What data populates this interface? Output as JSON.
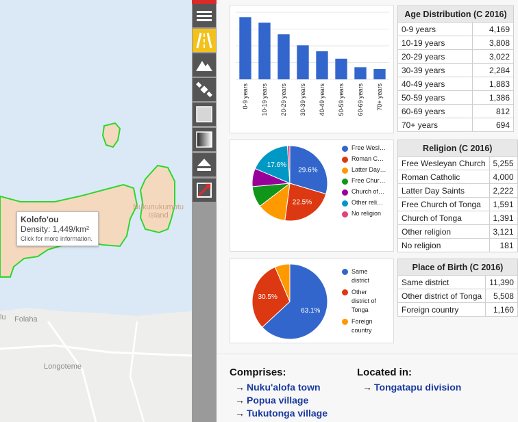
{
  "map": {
    "labels": {
      "island": "Nukunukumotu Island",
      "folaha": "Folaha",
      "longoteme": "Longoteme",
      "lu": "lu"
    },
    "tooltip": {
      "title": "Kolofo'ou",
      "density": "Density: 1,449/km²",
      "hint": "Click for more information."
    }
  },
  "toolbar": {
    "buttons": [
      {
        "icon": "menu-icon",
        "active": false
      },
      {
        "icon": "road-icon",
        "active": true
      },
      {
        "icon": "mountain-icon",
        "active": false
      },
      {
        "icon": "satellite-icon",
        "active": false
      },
      {
        "icon": "square-icon",
        "active": false
      },
      {
        "icon": "gradient-icon",
        "active": false
      },
      {
        "icon": "eject-icon",
        "active": false
      },
      {
        "icon": "expand-icon",
        "active": false
      }
    ],
    "accent": "#f2c21b"
  },
  "age": {
    "title": "Age Distribution (C 2016)",
    "rows": [
      {
        "label": "0-9 years",
        "value": "4,169"
      },
      {
        "label": "10-19 years",
        "value": "3,808"
      },
      {
        "label": "20-29 years",
        "value": "3,022"
      },
      {
        "label": "30-39 years",
        "value": "2,284"
      },
      {
        "label": "40-49 years",
        "value": "1,883"
      },
      {
        "label": "50-59 years",
        "value": "1,386"
      },
      {
        "label": "60-69 years",
        "value": "812"
      },
      {
        "label": "70+ years",
        "value": "694"
      }
    ]
  },
  "religion": {
    "title": "Religion (C 2016)",
    "rows": [
      {
        "label": "Free Wesleyan Church",
        "value": "5,255"
      },
      {
        "label": "Roman Catholic",
        "value": "4,000"
      },
      {
        "label": "Latter Day Saints",
        "value": "2,222"
      },
      {
        "label": "Free Church of Tonga",
        "value": "1,591"
      },
      {
        "label": "Church of Tonga",
        "value": "1,391"
      },
      {
        "label": "Other religion",
        "value": "3,121"
      },
      {
        "label": "No religion",
        "value": "181"
      }
    ],
    "legend": [
      "Free Wesl…",
      "Roman C…",
      "Latter Day…",
      "Free Chur…",
      "Church of…",
      "Other reli…",
      "No religion"
    ]
  },
  "birth": {
    "title": "Place of Birth (C 2016)",
    "rows": [
      {
        "label": "Same district",
        "value": "11,390"
      },
      {
        "label": "Other district of Tonga",
        "value": "5,508"
      },
      {
        "label": "Foreign country",
        "value": "1,160"
      }
    ],
    "legend": [
      [
        "Same",
        "district"
      ],
      [
        "Other",
        "district of",
        "Tonga"
      ],
      [
        "Foreign",
        "country"
      ]
    ]
  },
  "links": {
    "comprises_title": "Comprises:",
    "comprises": [
      "Nuku'alofa town",
      "Popua village",
      "Tukutonga village"
    ],
    "located_title": "Located in:",
    "located": [
      "Tongatapu division"
    ],
    "arrow": "→"
  },
  "chart_data": [
    {
      "type": "bar",
      "categories": [
        "0-9 years",
        "10-19 years",
        "20-29 years",
        "30-39 years",
        "40-49 years",
        "50-59 years",
        "60-69 years",
        "70+ years"
      ],
      "values": [
        4169,
        3808,
        3022,
        2284,
        1883,
        1386,
        812,
        694
      ],
      "color": "#3366cc",
      "grid": true
    },
    {
      "type": "pie",
      "labels": [
        "Free Wesleyan Church",
        "Roman Catholic",
        "Latter Day Saints",
        "Free Church of Tonga",
        "Church of Tonga",
        "Other religion",
        "No religion"
      ],
      "values": [
        5255,
        4000,
        2222,
        1591,
        1391,
        3121,
        181
      ],
      "slice_labels": [
        "29.6%",
        "22.5%",
        "",
        "",
        "",
        "17.6%",
        ""
      ],
      "colors": [
        "#3366cc",
        "#dc3912",
        "#ff9900",
        "#109618",
        "#990099",
        "#0099c6",
        "#dd4477"
      ],
      "legend": "right"
    },
    {
      "type": "pie",
      "labels": [
        "Same district",
        "Other district of Tonga",
        "Foreign country"
      ],
      "values": [
        11390,
        5508,
        1160
      ],
      "slice_labels": [
        "63.1%",
        "30.5%",
        ""
      ],
      "colors": [
        "#3366cc",
        "#dc3912",
        "#ff9900"
      ],
      "legend": "right"
    }
  ]
}
